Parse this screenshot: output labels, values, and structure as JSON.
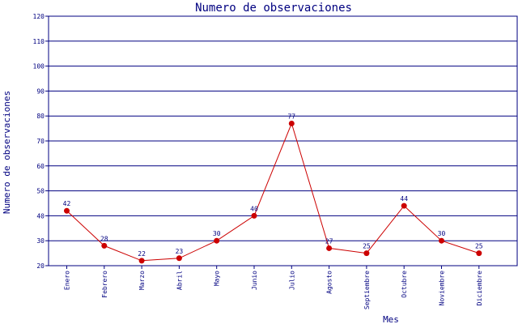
{
  "chart_data": {
    "type": "line",
    "title": "Numero de observaciones",
    "xlabel": "Mes",
    "ylabel": "Numero de observaciones",
    "ylim": [
      20,
      120
    ],
    "yticks": [
      20,
      30,
      40,
      50,
      60,
      70,
      80,
      90,
      100,
      110,
      120
    ],
    "grid": true,
    "categories": [
      "Enero",
      "Febrero",
      "Marzo",
      "Abril",
      "Mayo",
      "Junio",
      "Julio",
      "Agosto",
      "Septiembre",
      "Octubre",
      "Noviembre",
      "Diciembre"
    ],
    "series": [
      {
        "values": [
          42,
          28,
          22,
          23,
          30,
          40,
          77,
          27,
          25,
          44,
          30,
          25
        ]
      }
    ],
    "colors": {
      "line": "#cc0000",
      "marker": "#cc0000",
      "grid": "#000080",
      "axis": "#000080",
      "text": "#000080",
      "background": "#ffffff"
    }
  }
}
